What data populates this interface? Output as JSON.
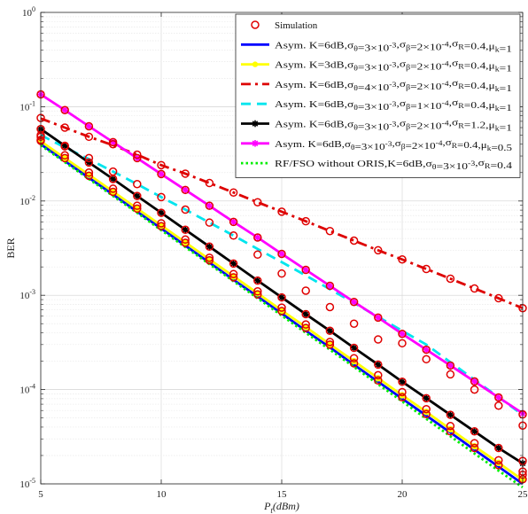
{
  "chart_data": {
    "type": "line",
    "title": "",
    "xlabel": "P_t(dBm)",
    "ylabel": "BER",
    "x_scale": "linear",
    "y_scale": "log",
    "xlim": [
      5,
      25
    ],
    "ylim": [
      1e-05,
      1
    ],
    "x_ticks": [
      5,
      10,
      15,
      20,
      25
    ],
    "x_tick_labels": [
      "5",
      "10",
      "15",
      "20",
      "25"
    ],
    "y_ticks": [
      1e-05,
      0.0001,
      0.001,
      0.01,
      0.1,
      1
    ],
    "y_tick_labels": [
      {
        "base": "10",
        "exp": "-5"
      },
      {
        "base": "10",
        "exp": "-4"
      },
      {
        "base": "10",
        "exp": "-3"
      },
      {
        "base": "10",
        "exp": "-2"
      },
      {
        "base": "10",
        "exp": "-1"
      },
      {
        "base": "10",
        "exp": "0"
      }
    ],
    "grid": true,
    "legend_position": "top-right",
    "x": [
      5,
      6,
      7,
      8,
      9,
      10,
      11,
      12,
      13,
      14,
      15,
      16,
      17,
      18,
      19,
      20,
      21,
      22,
      23,
      24,
      25
    ],
    "series": [
      {
        "name_parts": [
          {
            "t": "Asym. K=6dB,"
          },
          {
            "t": "σ"
          },
          {
            "t": "θ",
            "sub": true
          },
          {
            "t": "=3×10"
          },
          {
            "t": "-3",
            "sup": true
          },
          {
            "t": ",σ"
          },
          {
            "t": "β",
            "sub": true
          },
          {
            "t": "=2×10"
          },
          {
            "t": "-4",
            "sup": true
          },
          {
            "t": ",σ"
          },
          {
            "t": "R",
            "sub": true
          },
          {
            "t": "=0.4,μ"
          },
          {
            "t": "k",
            "sub": true
          },
          {
            "t": "=1"
          }
        ],
        "color": "#0000ff",
        "dash": "solid",
        "marker": "none",
        "width": 2.8,
        "y": [
          0.04,
          0.0265,
          0.0176,
          0.0117,
          0.0077,
          0.0051,
          0.00336,
          0.00222,
          0.00146,
          0.00097,
          0.00064,
          0.00042,
          0.00028,
          0.000183,
          0.000121,
          8e-05,
          5.3e-05,
          3.5e-05,
          2.3e-05,
          1.52e-05,
          1e-05
        ]
      },
      {
        "name_parts": [
          {
            "t": "Asym. K=3dB,"
          },
          {
            "t": "σ"
          },
          {
            "t": "θ",
            "sub": true
          },
          {
            "t": "=3×10"
          },
          {
            "t": "-3",
            "sup": true
          },
          {
            "t": ",σ"
          },
          {
            "t": "β",
            "sub": true
          },
          {
            "t": "=2×10"
          },
          {
            "t": "-4",
            "sup": true
          },
          {
            "t": ",σ"
          },
          {
            "t": "R",
            "sub": true
          },
          {
            "t": "=0.4,μ"
          },
          {
            "t": "k",
            "sub": true
          },
          {
            "t": "=1"
          }
        ],
        "color": "#ffff00",
        "dash": "solid",
        "marker": "circle-filled",
        "width": 2.8,
        "y": [
          0.043,
          0.0285,
          0.019,
          0.0126,
          0.0083,
          0.0055,
          0.00364,
          0.0024,
          0.00159,
          0.00105,
          0.00069,
          0.00046,
          0.000302,
          0.0002,
          0.000132,
          8.7e-05,
          5.8e-05,
          3.8e-05,
          2.5e-05,
          1.67e-05,
          1.1e-05
        ]
      },
      {
        "name_parts": [
          {
            "t": "Asym. K=6dB,"
          },
          {
            "t": "σ"
          },
          {
            "t": "θ",
            "sub": true
          },
          {
            "t": "=4×10"
          },
          {
            "t": "-3",
            "sup": true
          },
          {
            "t": ",σ"
          },
          {
            "t": "β",
            "sub": true
          },
          {
            "t": "=2×10"
          },
          {
            "t": "-4",
            "sup": true
          },
          {
            "t": ",σ"
          },
          {
            "t": "R",
            "sub": true
          },
          {
            "t": "=0.4,μ"
          },
          {
            "t": "k",
            "sub": true
          },
          {
            "t": "=1"
          }
        ],
        "color": "#dd0000",
        "dash": "dashdot",
        "marker": "none",
        "width": 2.8,
        "y": [
          0.075,
          0.06,
          0.048,
          0.039,
          0.031,
          0.024,
          0.0195,
          0.0155,
          0.0123,
          0.0097,
          0.0077,
          0.0061,
          0.0048,
          0.0038,
          0.003,
          0.0024,
          0.0019,
          0.0015,
          0.00118,
          0.00093,
          0.00073
        ]
      },
      {
        "name_parts": [
          {
            "t": "Asym. K=6dB,"
          },
          {
            "t": "σ"
          },
          {
            "t": "θ",
            "sub": true
          },
          {
            "t": "=3×10"
          },
          {
            "t": "-3",
            "sup": true
          },
          {
            "t": ",σ"
          },
          {
            "t": "β",
            "sub": true
          },
          {
            "t": "=1×10"
          },
          {
            "t": "-4",
            "sup": true
          },
          {
            "t": ",σ"
          },
          {
            "t": "R",
            "sub": true
          },
          {
            "t": "=0.4,μ"
          },
          {
            "t": "k",
            "sub": true
          },
          {
            "t": "=1"
          }
        ],
        "color": "#00e5ee",
        "dash": "dashed",
        "marker": "none",
        "width": 2.8,
        "y": [
          0.05,
          0.037,
          0.0278,
          0.0205,
          0.0151,
          0.011,
          0.0081,
          0.0059,
          0.0043,
          0.0031,
          0.00225,
          0.00162,
          0.00116,
          0.00083,
          0.00059,
          0.00042,
          0.0003,
          0.000195,
          0.000127,
          8.3e-05,
          5.4e-05
        ]
      },
      {
        "name_parts": [
          {
            "t": "Asym. K=6dB,"
          },
          {
            "t": "σ"
          },
          {
            "t": "θ",
            "sub": true
          },
          {
            "t": "=3×10"
          },
          {
            "t": "-3",
            "sup": true
          },
          {
            "t": ",σ"
          },
          {
            "t": "β",
            "sub": true
          },
          {
            "t": "=2×10"
          },
          {
            "t": "-4",
            "sup": true
          },
          {
            "t": ",σ"
          },
          {
            "t": "R",
            "sub": true
          },
          {
            "t": "=1.2,μ"
          },
          {
            "t": "k",
            "sub": true
          },
          {
            "t": "=1"
          }
        ],
        "color": "#000000",
        "dash": "solid",
        "marker": "star",
        "width": 2.8,
        "y": [
          0.058,
          0.0385,
          0.0256,
          0.0171,
          0.0113,
          0.0075,
          0.00495,
          0.00328,
          0.00217,
          0.00143,
          0.00095,
          0.00063,
          0.00042,
          0.000277,
          0.000184,
          0.000121,
          8.1e-05,
          5.4e-05,
          3.6e-05,
          2.4e-05,
          1.65e-05
        ]
      },
      {
        "name_parts": [
          {
            "t": "Asym. K=6dB,"
          },
          {
            "t": "σ"
          },
          {
            "t": "θ",
            "sub": true
          },
          {
            "t": "=3×10"
          },
          {
            "t": "-3",
            "sup": true
          },
          {
            "t": ",σ"
          },
          {
            "t": "β",
            "sub": true
          },
          {
            "t": "=2×10"
          },
          {
            "t": "-4",
            "sup": true
          },
          {
            "t": ",σ"
          },
          {
            "t": "R",
            "sub": true
          },
          {
            "t": "=0.4,μ"
          },
          {
            "t": "k",
            "sub": true
          },
          {
            "t": "=0.5"
          }
        ],
        "color": "#ff00ff",
        "dash": "solid",
        "marker": "star",
        "width": 2.8,
        "y": [
          0.135,
          0.092,
          0.062,
          0.0421,
          0.0285,
          0.0193,
          0.0131,
          0.0089,
          0.006,
          0.0041,
          0.00275,
          0.00186,
          0.00126,
          0.00085,
          0.00058,
          0.00039,
          0.000265,
          0.00018,
          0.000122,
          8.25e-05,
          5.6e-05
        ]
      },
      {
        "name_parts": [
          {
            "t": "RF/FSO without ORIS,K=6dB,"
          },
          {
            "t": "σ"
          },
          {
            "t": "θ",
            "sub": true
          },
          {
            "t": "=3×10"
          },
          {
            "t": "-3",
            "sup": true
          },
          {
            "t": ",σ"
          },
          {
            "t": "R",
            "sub": true
          },
          {
            "t": "=0.4"
          }
        ],
        "color": "#00ee00",
        "dash": "dotted",
        "marker": "none",
        "width": 2.8,
        "y": [
          0.039,
          0.0258,
          0.0171,
          0.0113,
          0.0075,
          0.0049,
          0.00325,
          0.00214,
          0.00141,
          0.00093,
          0.00061,
          0.0004,
          0.000265,
          0.000174,
          0.000114,
          7.5e-05,
          4.9e-05,
          3.2e-05,
          2.1e-05,
          1.38e-05,
          9.2e-06
        ]
      }
    ],
    "simulation": {
      "name": "Simulation",
      "color": "#e00000",
      "marker": "circle-open",
      "points": [
        {
          "x": 5,
          "y": [
            0.0445,
            0.048,
            0.076,
            0.05,
            0.058,
            0.135,
            0.0435
          ]
        },
        {
          "x": 6,
          "y": [
            0.0285,
            0.0305,
            0.06,
            0.038,
            0.0385,
            0.092
          ]
        },
        {
          "x": 7,
          "y": [
            0.0185,
            0.02,
            0.048,
            0.0285,
            0.0256,
            0.062
          ]
        },
        {
          "x": 8,
          "y": [
            0.0125,
            0.0135,
            0.04,
            0.0205,
            0.0171,
            0.0421
          ]
        },
        {
          "x": 9,
          "y": [
            0.0083,
            0.0089,
            0.031,
            0.0151,
            0.0113,
            0.0285
          ]
        },
        {
          "x": 10,
          "y": [
            0.0054,
            0.0058,
            0.024,
            0.011,
            0.0075,
            0.0193
          ]
        },
        {
          "x": 11,
          "y": [
            0.0036,
            0.0039,
            0.0195,
            0.0081,
            0.00495,
            0.0131
          ]
        },
        {
          "x": 12,
          "y": [
            0.00235,
            0.0025,
            0.0155,
            0.0059,
            0.00328,
            0.0089
          ]
        },
        {
          "x": 13,
          "y": [
            0.00155,
            0.00168,
            0.0123,
            0.0043,
            0.00217,
            0.006
          ]
        },
        {
          "x": 14,
          "y": [
            0.00102,
            0.0011,
            0.0097,
            0.0027,
            0.00143,
            0.0041
          ]
        },
        {
          "x": 15,
          "y": [
            0.00068,
            0.00074,
            0.0077,
            0.0017,
            0.00095,
            0.00275
          ]
        },
        {
          "x": 16,
          "y": [
            0.00045,
            0.00049,
            0.0061,
            0.00112,
            0.00063,
            0.00186
          ]
        },
        {
          "x": 17,
          "y": [
            0.0003,
            0.00032,
            0.0048,
            0.00075,
            0.00042,
            0.00126
          ]
        },
        {
          "x": 18,
          "y": [
            0.00019,
            0.000215,
            0.0038,
            0.0005,
            0.000277,
            0.00085
          ]
        },
        {
          "x": 19,
          "y": [
            0.000125,
            0.000142,
            0.003,
            0.00034,
            0.000184,
            0.00058
          ]
        },
        {
          "x": 20,
          "y": [
            8.3e-05,
            9.4e-05,
            0.0024,
            0.00031,
            0.000121,
            0.00039
          ]
        },
        {
          "x": 21,
          "y": [
            5.5e-05,
            6.2e-05,
            0.0019,
            0.00021,
            8.1e-05,
            0.000265
          ]
        },
        {
          "x": 22,
          "y": [
            3.6e-05,
            4.1e-05,
            0.0015,
            0.000145,
            5.4e-05,
            0.00018
          ]
        },
        {
          "x": 23,
          "y": [
            2.4e-05,
            2.7e-05,
            0.00118,
            0.0001,
            3.6e-05,
            0.000122
          ]
        },
        {
          "x": 24,
          "y": [
            1.58e-05,
            1.78e-05,
            0.00093,
            6.75e-05,
            2.4e-05,
            8.25e-05
          ]
        },
        {
          "x": 25,
          "y": [
            1.12e-05,
            1.25e-05,
            0.00073,
            4.15e-05,
            1.75e-05,
            5.45e-05,
            1.35e-05
          ]
        }
      ]
    }
  }
}
